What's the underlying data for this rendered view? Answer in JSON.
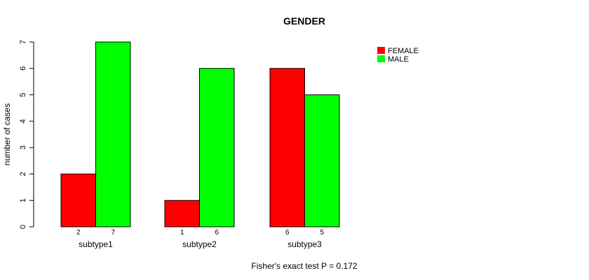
{
  "chart_data": {
    "type": "bar",
    "title": "GENDER",
    "ylabel": "number of cases",
    "xlabel": "",
    "ylim": [
      0,
      7
    ],
    "yticks": [
      "0",
      "1",
      "2",
      "3",
      "4",
      "5",
      "6",
      "7"
    ],
    "categories": [
      "subtype1",
      "subtype2",
      "subtype3"
    ],
    "series": [
      {
        "name": "FEMALE",
        "color": "#ff0000",
        "values": [
          2,
          1,
          6
        ]
      },
      {
        "name": "MALE",
        "color": "#00ff00",
        "values": [
          7,
          6,
          5
        ]
      }
    ],
    "legend_position": "top-right",
    "footnote": "Fisher's exact test P = 0.172"
  }
}
